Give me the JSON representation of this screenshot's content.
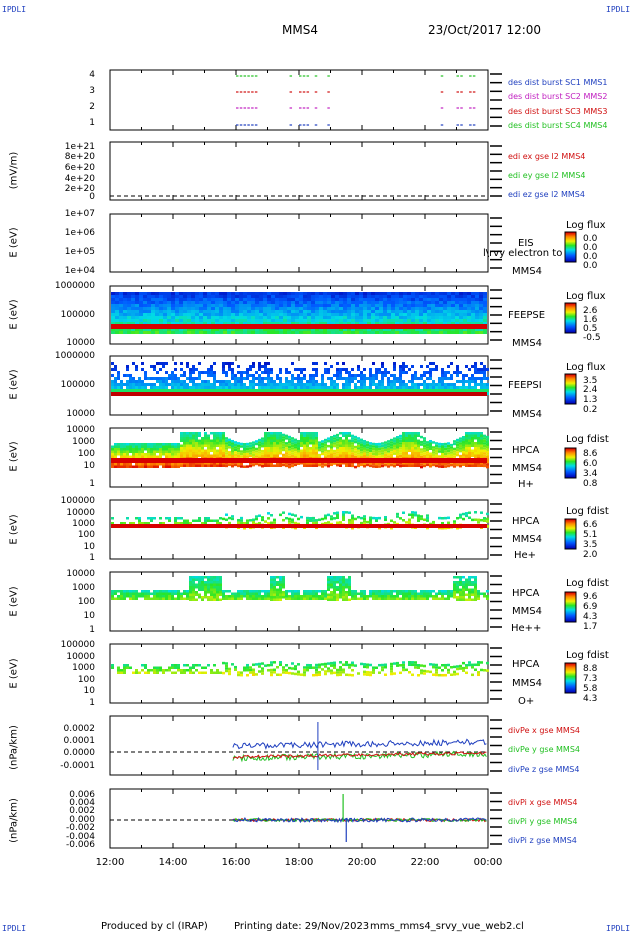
{
  "header": {
    "corner_label": "IPDLI",
    "spacecraft": "MMS4",
    "datetime": "23/Oct/2017 12:00"
  },
  "footer": {
    "produced_by": "Produced by cl (IRAP)",
    "printing_date": "Printing date: 29/Nov/2023",
    "file": "mms_mms4_srvy_vue_web2.cl"
  },
  "colors": {
    "blue": "#1f3fbf",
    "green": "#22c022",
    "red": "#d01010",
    "magenta": "#c020c0"
  },
  "chart_data": [
    {
      "type": "line",
      "name": "des-burst-availability",
      "ylim": [
        0.5,
        4.5
      ],
      "yticks": [
        "1",
        "2",
        "3",
        "4"
      ],
      "x_range_hours": [
        12,
        24
      ],
      "legend": [
        {
          "text": "des dist burst SC1 MMS1",
          "color": "#1f3fbf"
        },
        {
          "text": "des dist burst SC2 MMS2",
          "color": "#c020c0"
        },
        {
          "text": "des dist burst SC3 MMS3",
          "color": "#d01010"
        },
        {
          "text": "des dist burst SC4 MMS4",
          "color": "#22c022"
        }
      ],
      "bursts_hours": [
        [
          16.0,
          16.7
        ],
        [
          17.7,
          17.8
        ],
        [
          18.0,
          18.35
        ],
        [
          18.5,
          18.6
        ],
        [
          18.9,
          19.0
        ],
        [
          22.5,
          22.6
        ],
        [
          23.0,
          23.2
        ],
        [
          23.4,
          23.6
        ]
      ]
    },
    {
      "type": "line",
      "name": "edi-electric-field",
      "ylabel": "(mV/m)",
      "yticks": [
        "0",
        "2e+20",
        "4e+20",
        "6e+20",
        "8e+20",
        "1e+21"
      ],
      "ylim": [
        0,
        1e+21
      ],
      "legend": [
        {
          "text": "edi ex gse l2 MMS4",
          "color": "#d01010"
        },
        {
          "text": "edi ey gse l2 MMS4",
          "color": "#22c022"
        },
        {
          "text": "edi ez gse l2 MMS4",
          "color": "#1f3fbf"
        }
      ]
    },
    {
      "type": "heatmap",
      "name": "eis",
      "ylabel": "E (eV)",
      "yticks": [
        "1e+07",
        "1e+06",
        "1e+05",
        "1e+04"
      ],
      "labels": [
        "EIS",
        "MMS4"
      ],
      "overlay_text": "l\\rvy electron to",
      "colorbar": {
        "title": "Log flux",
        "values": [
          "0.0",
          "0.0",
          "0.0",
          "0.0"
        ]
      }
    },
    {
      "type": "heatmap",
      "name": "feeps-electrons",
      "ylabel": "E (eV)",
      "yticks": [
        "1000000",
        "100000",
        "10000"
      ],
      "labels": [
        "FEEPSE",
        "MMS4"
      ],
      "colorbar": {
        "title": "Log flux",
        "values": [
          "2.6",
          "1.6",
          "0.5",
          "-0.5"
        ]
      }
    },
    {
      "type": "heatmap",
      "name": "feeps-ions",
      "ylabel": "E (eV)",
      "yticks": [
        "1000000",
        "100000",
        "10000"
      ],
      "labels": [
        "FEEPSI",
        "MMS4"
      ],
      "colorbar": {
        "title": "Log flux",
        "values": [
          "3.5",
          "2.4",
          "1.3",
          "0.2"
        ]
      }
    },
    {
      "type": "heatmap",
      "name": "hpca-h",
      "ylabel": "E (eV)",
      "yticks": [
        "10000",
        "1000",
        "100",
        "10",
        "1"
      ],
      "labels": [
        "HPCA",
        "MMS4",
        "H+"
      ],
      "colorbar": {
        "title": "Log fdist",
        "values": [
          "8.6",
          "6.0",
          "3.4",
          "0.8"
        ]
      }
    },
    {
      "type": "heatmap",
      "name": "hpca-he",
      "ylabel": "E (eV)",
      "yticks": [
        "100000",
        "10000",
        "1000",
        "100",
        "10",
        "1"
      ],
      "labels": [
        "HPCA",
        "MMS4",
        "He+"
      ],
      "colorbar": {
        "title": "Log fdist",
        "values": [
          "6.6",
          "5.1",
          "3.5",
          "2.0"
        ]
      }
    },
    {
      "type": "heatmap",
      "name": "hpca-he2",
      "ylabel": "E (eV)",
      "yticks": [
        "10000",
        "1000",
        "100",
        "10",
        "1"
      ],
      "labels": [
        "HPCA",
        "MMS4",
        "He++"
      ],
      "colorbar": {
        "title": "Log fdist",
        "values": [
          "9.6",
          "6.9",
          "4.3",
          "1.7"
        ]
      }
    },
    {
      "type": "heatmap",
      "name": "hpca-o",
      "ylabel": "E (eV)",
      "yticks": [
        "100000",
        "10000",
        "1000",
        "100",
        "10",
        "1"
      ],
      "labels": [
        "HPCA",
        "MMS4",
        "O+"
      ],
      "colorbar": {
        "title": "Log fdist",
        "values": [
          "8.8",
          "7.3",
          "5.8",
          "4.3"
        ]
      }
    },
    {
      "type": "line",
      "name": "divpe",
      "ylabel": "(nPa/km)",
      "yticks": [
        "0.0002",
        "0.0001",
        "0.0000",
        "-0.0001"
      ],
      "ylim": [
        -0.00018,
        0.00028
      ],
      "legend": [
        {
          "text": "divPe x gse MMS4",
          "color": "#d01010"
        },
        {
          "text": "divPe y gse MMS4",
          "color": "#22c022"
        },
        {
          "text": "divPe z gse MMS4",
          "color": "#1f3fbf"
        }
      ]
    },
    {
      "type": "line",
      "name": "divpi",
      "ylabel": "(nPa/km)",
      "yticks": [
        "0.006",
        "0.004",
        "0.002",
        "0.000",
        "-0.002",
        "-0.004",
        "-0.006"
      ],
      "ylim": [
        -0.0065,
        0.0075
      ],
      "legend": [
        {
          "text": "divPi x gse MMS4",
          "color": "#d01010"
        },
        {
          "text": "divPi y gse MMS4",
          "color": "#22c022"
        },
        {
          "text": "divPi z gse MMS4",
          "color": "#1f3fbf"
        }
      ]
    }
  ],
  "x_axis": {
    "ticks": [
      "12:00",
      "14:00",
      "16:00",
      "18:00",
      "20:00",
      "22:00",
      "00:00"
    ],
    "range_hours": [
      12,
      24
    ]
  }
}
